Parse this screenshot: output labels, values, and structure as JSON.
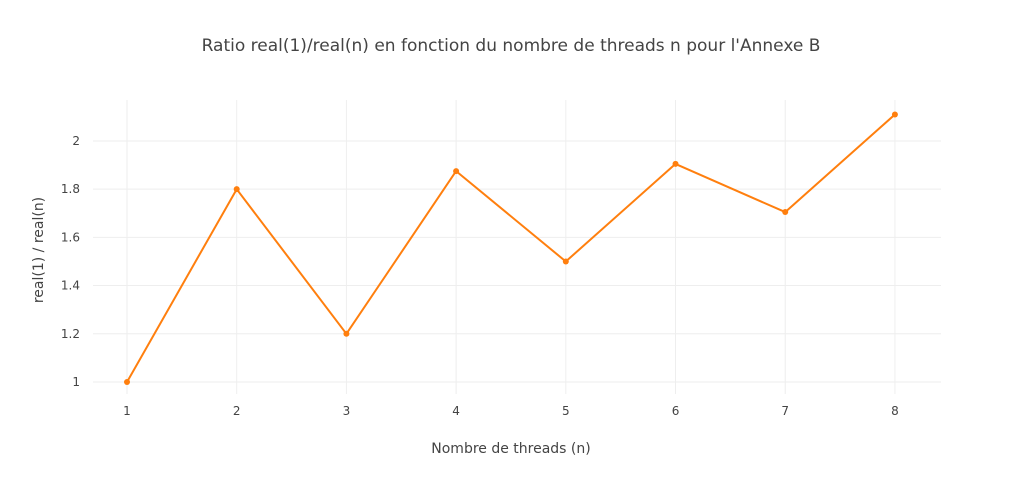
{
  "chart_data": {
    "type": "line",
    "title": "Ratio real(1)/real(n) en fonction du nombre de threads n pour l'Annexe B",
    "xlabel": "Nombre de threads (n)",
    "ylabel": "real(1) / real(n)",
    "x": [
      1,
      2,
      3,
      4,
      5,
      6,
      7,
      8
    ],
    "xticks": [
      "1",
      "2",
      "3",
      "4",
      "5",
      "6",
      "7",
      "8"
    ],
    "yticks": [
      "1",
      "1.2",
      "1.4",
      "1.6",
      "1.8",
      "2"
    ],
    "ytick_values": [
      1,
      1.2,
      1.4,
      1.6,
      1.8,
      2
    ],
    "xlim": [
      0.69,
      8.42
    ],
    "ylim": [
      0.95,
      2.17
    ],
    "grid": true,
    "legend": "none",
    "series": [
      {
        "values": [
          1.0,
          1.8,
          1.2,
          1.875,
          1.5,
          1.905,
          1.705,
          2.11
        ],
        "color": "#ff7f0e"
      }
    ]
  }
}
